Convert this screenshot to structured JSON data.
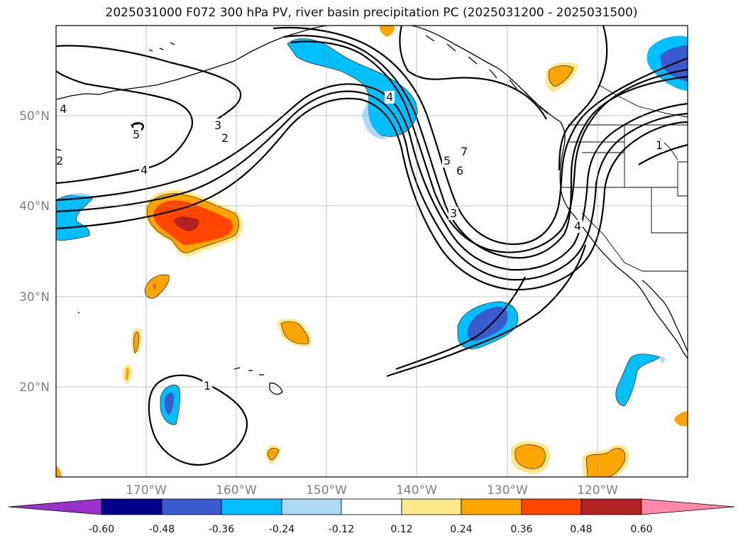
{
  "title": "2025031000 F072 300 hPa PV, river basin precipitation PC (2025031200 - 2025031500)",
  "map": {
    "lat_labels": [
      "50°N",
      "40°N",
      "30°N",
      "20°N"
    ],
    "lon_labels": [
      "170°W",
      "160°W",
      "150°W",
      "140°W",
      "130°W",
      "120°W"
    ],
    "contour_labels": [
      "4",
      "5",
      "2",
      "4",
      "3",
      "2",
      "4",
      "7",
      "5",
      "6",
      "3",
      "4",
      "1",
      "1"
    ]
  },
  "colorbar": {
    "tick_labels": [
      "-0.60",
      "-0.48",
      "-0.36",
      "-0.24",
      "-0.12",
      "0.12",
      "0.24",
      "0.36",
      "0.48",
      "0.60"
    ],
    "colors": [
      "#9932cc",
      "#00008b",
      "#3a5bcd",
      "#00bfff",
      "#add8f6",
      "#ffffff",
      "#ffe88a",
      "#ffa500",
      "#ff4500",
      "#b22222",
      "#ff88aa"
    ]
  }
}
